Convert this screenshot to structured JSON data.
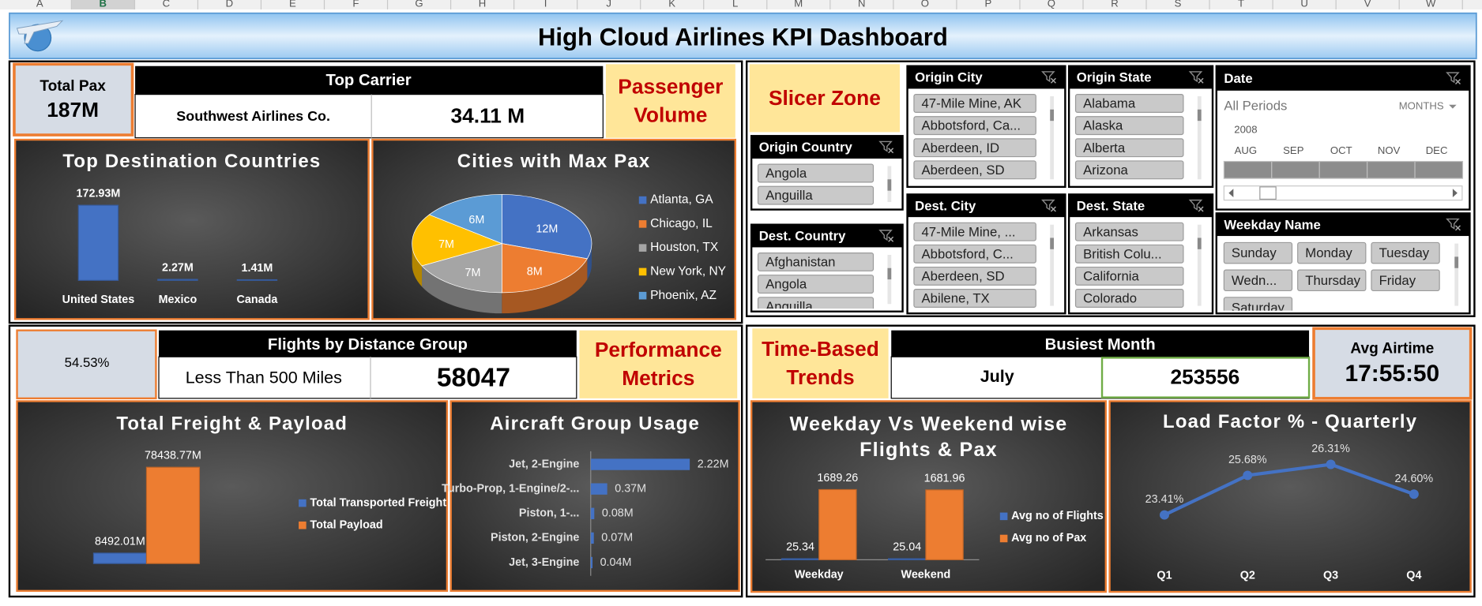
{
  "header": {
    "columns": [
      "A",
      "B",
      "C",
      "D",
      "E",
      "F",
      "G",
      "H",
      "I",
      "J",
      "K",
      "L",
      "M",
      "N",
      "O",
      "P",
      "Q",
      "R",
      "S",
      "T",
      "U",
      "V",
      "W"
    ],
    "title": "High Cloud Airlines KPI Dashboard"
  },
  "kpis": {
    "total_pax": {
      "label": "Total Pax",
      "value": "187M"
    },
    "top_carrier": {
      "label": "Top Carrier",
      "name": "Southwest Airlines Co.",
      "value": "34.11 M"
    },
    "distance": {
      "percent": "54.53%",
      "label": "Flights by Distance Group",
      "name": "Less Than 500 Miles",
      "value": "58047"
    },
    "busiest_month": {
      "label": "Busiest Month",
      "name": "July",
      "value": "253556"
    },
    "avg_airtime": {
      "label": "Avg Airtime",
      "value": "17:55:50"
    }
  },
  "sections": {
    "passenger_volume": "Passenger Volume",
    "slicer_zone": "Slicer Zone",
    "performance_metrics": "Performance Metrics",
    "time_trends": "Time-Based Trends"
  },
  "slicers": [
    {
      "title": "Origin Country",
      "items": [
        "Angola",
        "Anguilla"
      ]
    },
    {
      "title": "Dest. Country",
      "items": [
        "Afghanistan",
        "Angola",
        "Anguilla"
      ]
    },
    {
      "title": "Origin City",
      "items": [
        "47-Mile Mine, AK",
        "Abbotsford, Ca...",
        "Aberdeen, ID",
        "Aberdeen, SD"
      ]
    },
    {
      "title": "Dest. City",
      "items": [
        "47-Mile Mine, ...",
        "Abbotsford, C...",
        "Aberdeen, SD",
        "Abilene, TX"
      ]
    },
    {
      "title": "Origin State",
      "items": [
        "Alabama",
        "Alaska",
        "Alberta",
        "Arizona"
      ]
    },
    {
      "title": "Dest. State",
      "items": [
        "Arkansas",
        "British Colu...",
        "California",
        "Colorado"
      ]
    },
    {
      "title": "Weekday Name",
      "items": [
        "Sunday",
        "Monday",
        "Tuesday",
        "Wedn...",
        "Thursday",
        "Friday",
        "Saturday"
      ]
    }
  ],
  "timeline": {
    "title": "Date",
    "period": "All Periods",
    "unit": "MONTHS",
    "year": "2008",
    "months": [
      "AUG",
      "SEP",
      "OCT",
      "NOV",
      "DEC"
    ]
  },
  "chart_data": [
    {
      "type": "bar",
      "title": "Top Destination Countries",
      "categories": [
        "United States",
        "Mexico",
        "Canada"
      ],
      "values": [
        172.93,
        2.27,
        1.41
      ],
      "value_labels": [
        "172.93M",
        "2.27M",
        "1.41M"
      ],
      "color": "#4472c4",
      "ylim": [
        0,
        200
      ]
    },
    {
      "type": "pie",
      "title": "Cities with Max Pax",
      "categories": [
        "Atlanta, GA",
        "Chicago, IL",
        "Houston, TX",
        "New York, NY",
        "Phoenix, AZ"
      ],
      "values": [
        12,
        8,
        7,
        7,
        6
      ],
      "value_labels": [
        "12M",
        "8M",
        "7M",
        "7M",
        "6M"
      ],
      "colors": [
        "#4472c4",
        "#ed7d31",
        "#a5a5a5",
        "#ffc000",
        "#5b9bd5"
      ]
    },
    {
      "type": "bar",
      "title": "Total Freight & Payload",
      "categories": [
        null
      ],
      "series": [
        {
          "name": "Total Transported Freight",
          "color": "#4472c4",
          "values": [
            8492.01
          ],
          "value_labels": [
            "8492.01M"
          ]
        },
        {
          "name": "Total Payload",
          "color": "#ed7d31",
          "values": [
            78438.77
          ],
          "value_labels": [
            "78438.77M"
          ]
        }
      ],
      "ylim": [
        0,
        90000
      ]
    },
    {
      "type": "bar",
      "horizontal": true,
      "title": "Aircraft Group Usage",
      "categories": [
        "Jet, 2-Engine",
        "Turbo-Prop, 1-Engine/2-...",
        "Piston, 1-...",
        "Piston, 2-Engine",
        "Jet, 3-Engine"
      ],
      "values": [
        2.22,
        0.37,
        0.08,
        0.07,
        0.04
      ],
      "value_labels": [
        "2.22M",
        "0.37M",
        "0.08M",
        "0.07M",
        "0.04M"
      ],
      "color": "#4472c4",
      "xlim": [
        0,
        2.5
      ]
    },
    {
      "type": "bar",
      "title": "Weekday Vs Weekend wise Flights & Pax",
      "categories": [
        "Weekday",
        "Weekend"
      ],
      "series": [
        {
          "name": "Avg no of Flights",
          "color": "#4472c4",
          "values": [
            25.34,
            25.04
          ]
        },
        {
          "name": "Avg no of Pax",
          "color": "#ed7d31",
          "values": [
            1689.26,
            1681.96
          ]
        }
      ],
      "ylim": [
        0,
        2000
      ]
    },
    {
      "type": "line",
      "title": "Load Factor % - Quarterly",
      "categories": [
        "Q1",
        "Q2",
        "Q3",
        "Q4"
      ],
      "values": [
        23.41,
        25.68,
        26.31,
        24.6
      ],
      "value_labels": [
        "23.41%",
        "25.68%",
        "26.31%",
        "24.60%"
      ],
      "color": "#4472c4",
      "ylim": [
        21,
        27.5
      ]
    }
  ]
}
